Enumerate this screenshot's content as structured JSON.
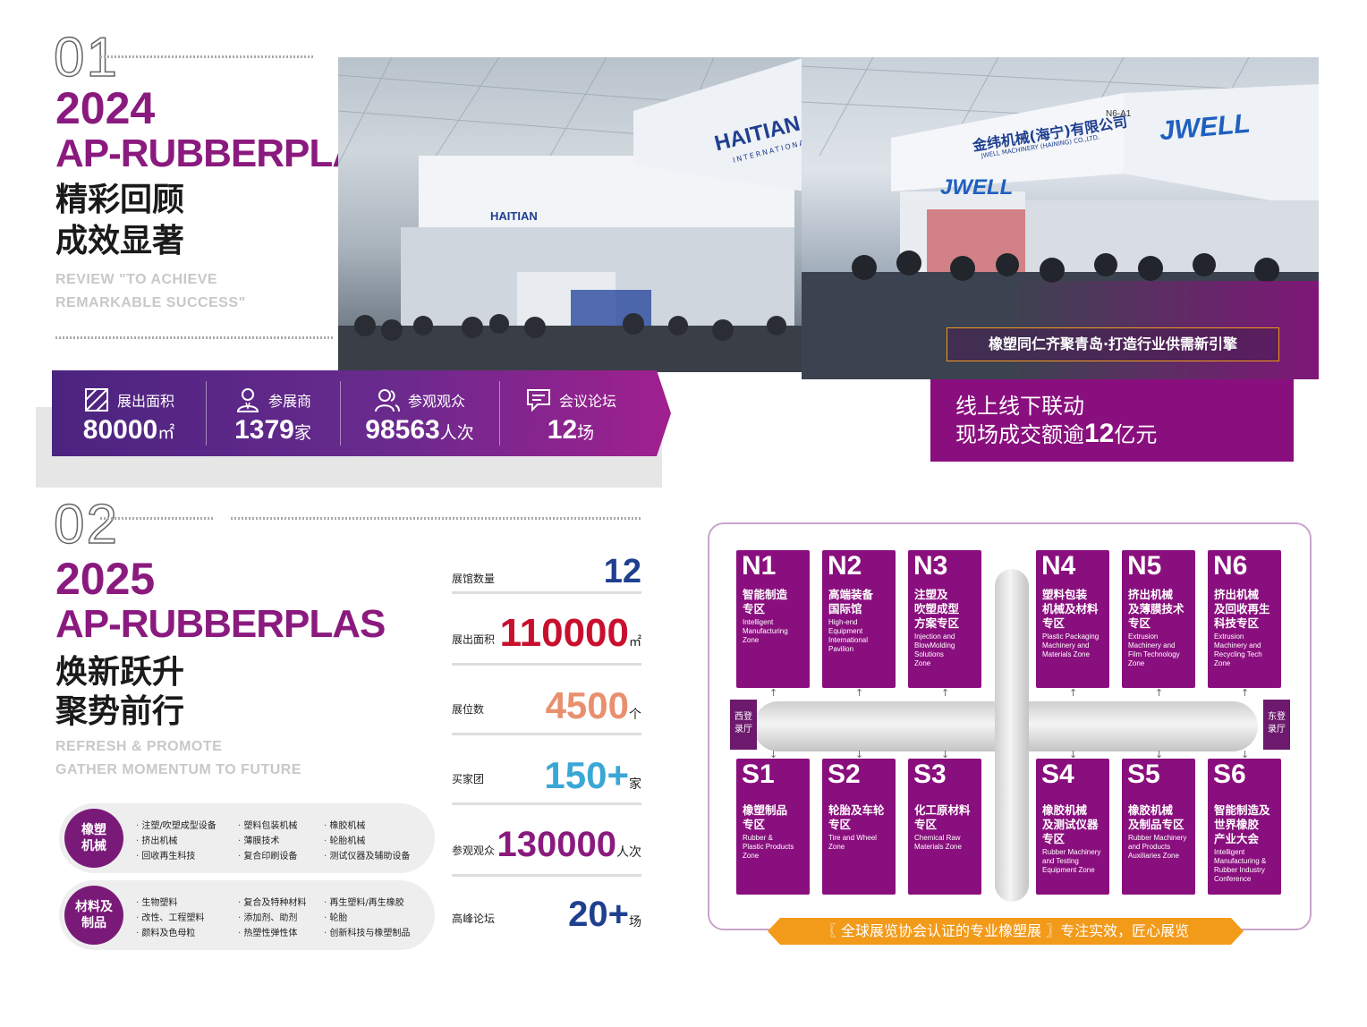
{
  "section1": {
    "number": "01",
    "year": "2024",
    "event": "AP-RUBBERPLAS",
    "title_line1": "精彩回顾",
    "title_line2": "成效显著",
    "en_line1": "REVIEW \"TO ACHIEVE",
    "en_line2": "REMARKABLE SUCCESS\"",
    "photo_left": {
      "sign1": "HAITIAN",
      "sign2": "INTERNATIONAL",
      "sign3": "HAITIAN"
    },
    "photo_right": {
      "company_cn": "金纬机械(海宁)有限公司",
      "company_en": "JWELL MACHINERY (HAINING) CO.,LTD.",
      "logo": "JWELL",
      "booth": "N6-A1",
      "caption": "橡塑同仁齐聚青岛·打造行业供需新引擎"
    },
    "stats": [
      {
        "icon": "area-icon",
        "label": "展出面积",
        "value": "80000",
        "unit": "㎡"
      },
      {
        "icon": "exhibitor-icon",
        "label": "参展商",
        "value": "1379",
        "unit": "家"
      },
      {
        "icon": "visitor-icon",
        "label": "参观观众",
        "value": "98563",
        "unit": "人次"
      },
      {
        "icon": "forum-icon",
        "label": "会议论坛",
        "value": "12",
        "unit": "场"
      }
    ],
    "highlight_line1": "线上线下联动",
    "highlight_line2_prefix": "现场成交额逾",
    "highlight_value": "12",
    "highlight_line2_suffix": "亿元"
  },
  "section2": {
    "number": "02",
    "year": "2025",
    "event": "AP-RUBBERPLAS",
    "title_line1": "焕新跃升",
    "title_line2": "聚势前行",
    "en_line1": "REFRESH & PROMOTE",
    "en_line2": "GATHER MOMENTUM TO FUTURE",
    "stats": [
      {
        "label": "展馆数量",
        "value": "12",
        "unit": "",
        "color": "#1f3f8f"
      },
      {
        "label": "展出面积",
        "value": "110000",
        "unit": "㎡",
        "color": "#c8102e"
      },
      {
        "label": "展位数",
        "value": "4500",
        "unit": "个",
        "color": "#e8906e"
      },
      {
        "label": "买家团",
        "value": "150+",
        "unit": "家",
        "color": "#3aa7d6"
      },
      {
        "label": "参观观众",
        "value": "130000",
        "unit": "人次",
        "color": "#8a1a7e"
      },
      {
        "label": "高峰论坛",
        "value": "20+",
        "unit": "场",
        "color": "#1f3f8f"
      }
    ],
    "categories": [
      {
        "name_line1": "橡塑",
        "name_line2": "机械",
        "items": [
          "注塑/吹塑成型设备",
          "挤出机械",
          "回收再生科技",
          "塑料包装机械",
          "薄膜技术",
          "复合印刷设备",
          "橡胶机械",
          "轮胎机械",
          "测试仪器及辅助设备"
        ]
      },
      {
        "name_line1": "材料及",
        "name_line2": "制品",
        "items": [
          "生物塑料",
          "改性、工程塑料",
          "颜料及色母粒",
          "复合及特种材料",
          "添加剂、助剂",
          "热塑性弹性体",
          "再生塑料/再生橡胶",
          "轮胎",
          "创新科技与橡塑制品"
        ]
      }
    ]
  },
  "map": {
    "north": [
      {
        "id": "N1",
        "cn": [
          "智能制造",
          "专区"
        ],
        "en": "Intelligent\nManufacturing\nZone"
      },
      {
        "id": "N2",
        "cn": [
          "高端装备",
          "国际馆"
        ],
        "en": "High-end\nEquipment\nInternational\nPavilion"
      },
      {
        "id": "N3",
        "cn": [
          "注塑及",
          "吹塑成型",
          "方案专区"
        ],
        "en": "Injection and\nBlowMolding\nSolutions\nZone"
      },
      {
        "id": "N4",
        "cn": [
          "塑料包装",
          "机械及材料",
          "专区"
        ],
        "en": "Plastic Packaging\nMachinery and\nMaterials Zone"
      },
      {
        "id": "N5",
        "cn": [
          "挤出机械",
          "及薄膜技术",
          "专区"
        ],
        "en": "Extrusion\nMachinery and\nFilm Technology\nZone"
      },
      {
        "id": "N6",
        "cn": [
          "挤出机械",
          "及回收再生",
          "科技专区"
        ],
        "en": "Extrusion\nMachinery and\nRecycling Tech\nZone"
      }
    ],
    "south": [
      {
        "id": "S1",
        "cn": [
          "橡塑制品",
          "专区"
        ],
        "en": "Rubber &\nPlastic Products\nZone"
      },
      {
        "id": "S2",
        "cn": [
          "轮胎及车轮",
          "专区"
        ],
        "en": "Tire and Wheel\nZone"
      },
      {
        "id": "S3",
        "cn": [
          "化工原材料",
          "专区"
        ],
        "en": "Chemical Raw\nMaterials Zone"
      },
      {
        "id": "S4",
        "cn": [
          "橡胶机械",
          "及测试仪器",
          "专区"
        ],
        "en": "Rubber Machinery\nand Testing\nEquipment Zone"
      },
      {
        "id": "S5",
        "cn": [
          "橡胶机械",
          "及制品专区"
        ],
        "en": "Rubber Machinery\nand Products\nAuxiliaries Zone"
      },
      {
        "id": "S6",
        "cn": [
          "智能制造及",
          "世界橡胶",
          "产业大会"
        ],
        "en": "Intelligent\nManufacturing &\nRubber Industry\nConference"
      }
    ],
    "west_lobby": [
      "西登",
      "录厅"
    ],
    "east_lobby": [
      "东登",
      "录厅"
    ],
    "banner": "〖 全球展览协会认证的专业橡塑展 〗专注实效，匠心展览"
  }
}
